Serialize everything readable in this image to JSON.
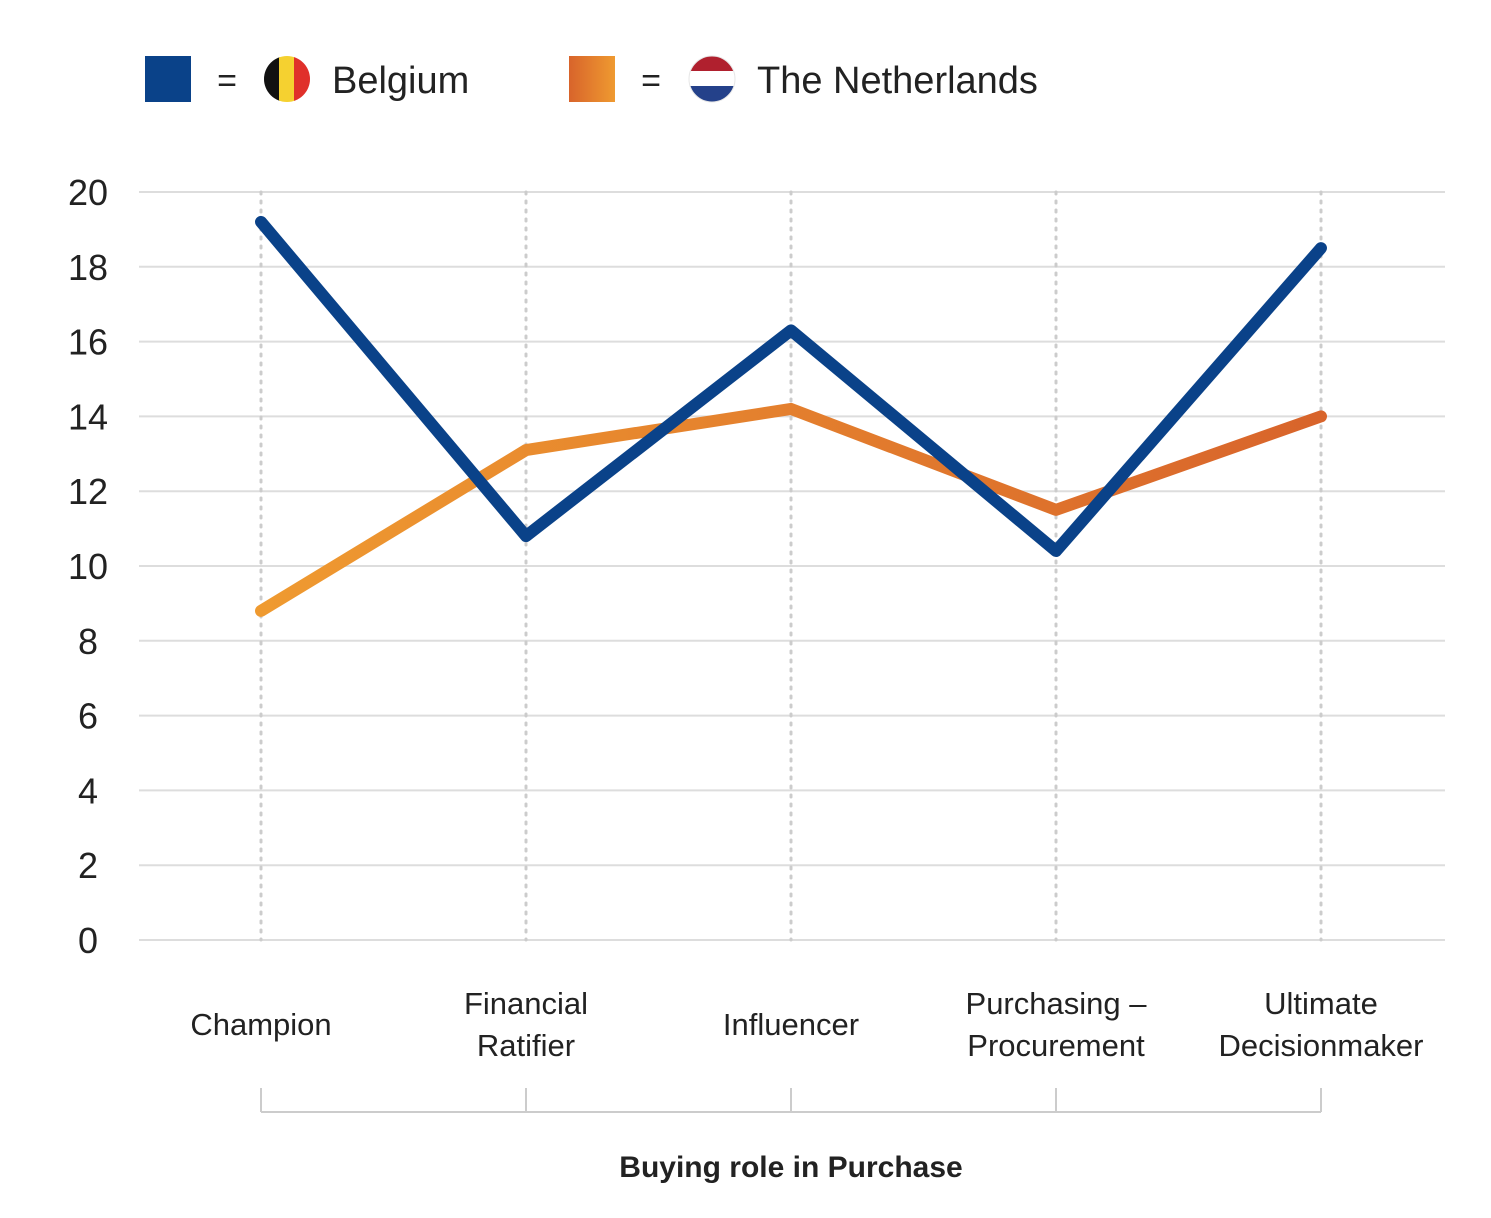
{
  "legend": [
    {
      "name": "Belgium",
      "equals": "=",
      "swatch_color": "#0a4289",
      "flag": "belgium-flag"
    },
    {
      "name": "The Netherlands",
      "equals": "=",
      "swatch_color": "#e3892f",
      "flag": "netherlands-flag"
    }
  ],
  "flags": {
    "belgium": [
      "#111111",
      "#f5d130",
      "#e0302a"
    ],
    "netherlands": [
      "#b0202e",
      "#ffffff",
      "#24418a"
    ]
  },
  "colors": {
    "belgium_line": "#0a4289",
    "netherlands_line_start": "#ef9a30",
    "netherlands_line_end": "#d8642b",
    "grid": "#dddddd",
    "text": "#222222"
  },
  "chart_data": {
    "type": "line",
    "categories": [
      [
        "Champion"
      ],
      [
        "Financial",
        "Ratifier"
      ],
      [
        "Influencer"
      ],
      [
        "Purchasing –",
        "Procurement"
      ],
      [
        "Ultimate",
        "Decisionmaker"
      ]
    ],
    "series": [
      {
        "name": "Belgium",
        "values": [
          19.2,
          10.8,
          16.3,
          10.4,
          18.5
        ]
      },
      {
        "name": "The Netherlands",
        "values": [
          8.8,
          13.1,
          14.2,
          11.5,
          14.0
        ]
      }
    ],
    "xlabel": "Buying role in Purchase",
    "ylabel": "",
    "ylim": [
      0,
      20
    ],
    "yticks": [
      0,
      2,
      4,
      6,
      8,
      10,
      12,
      14,
      16,
      18,
      20
    ],
    "grid": true,
    "legend_position": "top-left"
  }
}
